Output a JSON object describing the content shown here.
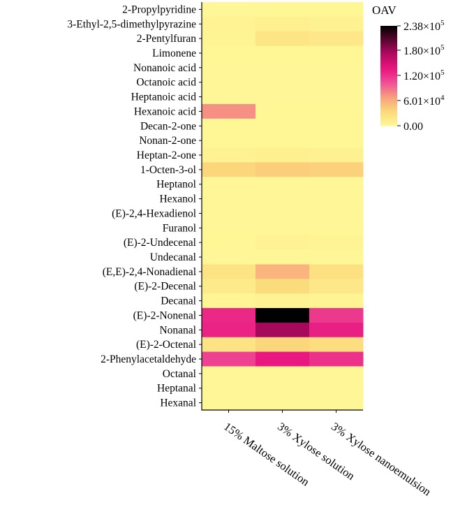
{
  "chart_data": {
    "type": "heatmap",
    "colorbar_title": "OAV",
    "colorbar_ticks": [
      {
        "value": 238000,
        "mantissa": "2.38",
        "exponent": "5"
      },
      {
        "value": 180000,
        "mantissa": "1.80",
        "exponent": "5"
      },
      {
        "value": 120000,
        "mantissa": "1.20",
        "exponent": "5"
      },
      {
        "value": 60100,
        "mantissa": "6.01",
        "exponent": "4"
      },
      {
        "value": 0,
        "mantissa": "0.00",
        "exponent": ""
      }
    ],
    "colorbar_range": [
      0,
      238000
    ],
    "color_stops": [
      "#fff797",
      "#fbd87a",
      "#f7a07f",
      "#f04f96",
      "#e8167f",
      "#b30a62",
      "#5b0631",
      "#000000"
    ],
    "columns": [
      "15% Maltose solution",
      "3% Xylose solution",
      "3% Xylose nanoemulsion"
    ],
    "rows": [
      "2-Propylpyridine",
      "3-Ethyl-2,5-dimethylpyrazine",
      "2-Pentylfuran",
      "Limonene",
      "Nonanoic acid",
      "Octanoic acid",
      "Heptanoic acid",
      "Hexanoic acid",
      "Decan-2-one",
      "Nonan-2-one",
      "Heptan-2-one",
      "1-Octen-3-ol",
      "Heptanol",
      "Hexanol",
      "(E)-2,4-Hexadienol",
      "Furanol",
      "(E)-2-Undecenal",
      "Undecanal",
      "(E,E)-2,4-Nonadienal",
      "(E)-2-Decenal",
      "Decanal",
      "(E)-2-Nonenal",
      "Nonanal",
      "(E)-2-Octenal",
      "2-Phenylacetaldehyde",
      "Octanal",
      "Heptanal",
      "Hexanal"
    ],
    "values": [
      [
        500,
        1000,
        800
      ],
      [
        4000,
        9000,
        7000
      ],
      [
        3000,
        20000,
        18000
      ],
      [
        800,
        1000,
        1000
      ],
      [
        500,
        500,
        500
      ],
      [
        500,
        500,
        500
      ],
      [
        500,
        500,
        500
      ],
      [
        75000,
        1000,
        1000
      ],
      [
        1000,
        1000,
        1000
      ],
      [
        1000,
        1000,
        1000
      ],
      [
        5000,
        9000,
        7000
      ],
      [
        35000,
        40000,
        38000
      ],
      [
        500,
        500,
        500
      ],
      [
        500,
        500,
        500
      ],
      [
        500,
        500,
        500
      ],
      [
        500,
        500,
        500
      ],
      [
        1000,
        6000,
        3000
      ],
      [
        500,
        500,
        500
      ],
      [
        22000,
        55000,
        25000
      ],
      [
        14000,
        30000,
        18000
      ],
      [
        2000,
        5000,
        3000
      ],
      [
        125000,
        238000,
        115000
      ],
      [
        128000,
        175000,
        130000
      ],
      [
        22000,
        35000,
        28000
      ],
      [
        110000,
        135000,
        120000
      ],
      [
        500,
        1500,
        800
      ],
      [
        500,
        500,
        500
      ],
      [
        500,
        500,
        500
      ]
    ]
  }
}
